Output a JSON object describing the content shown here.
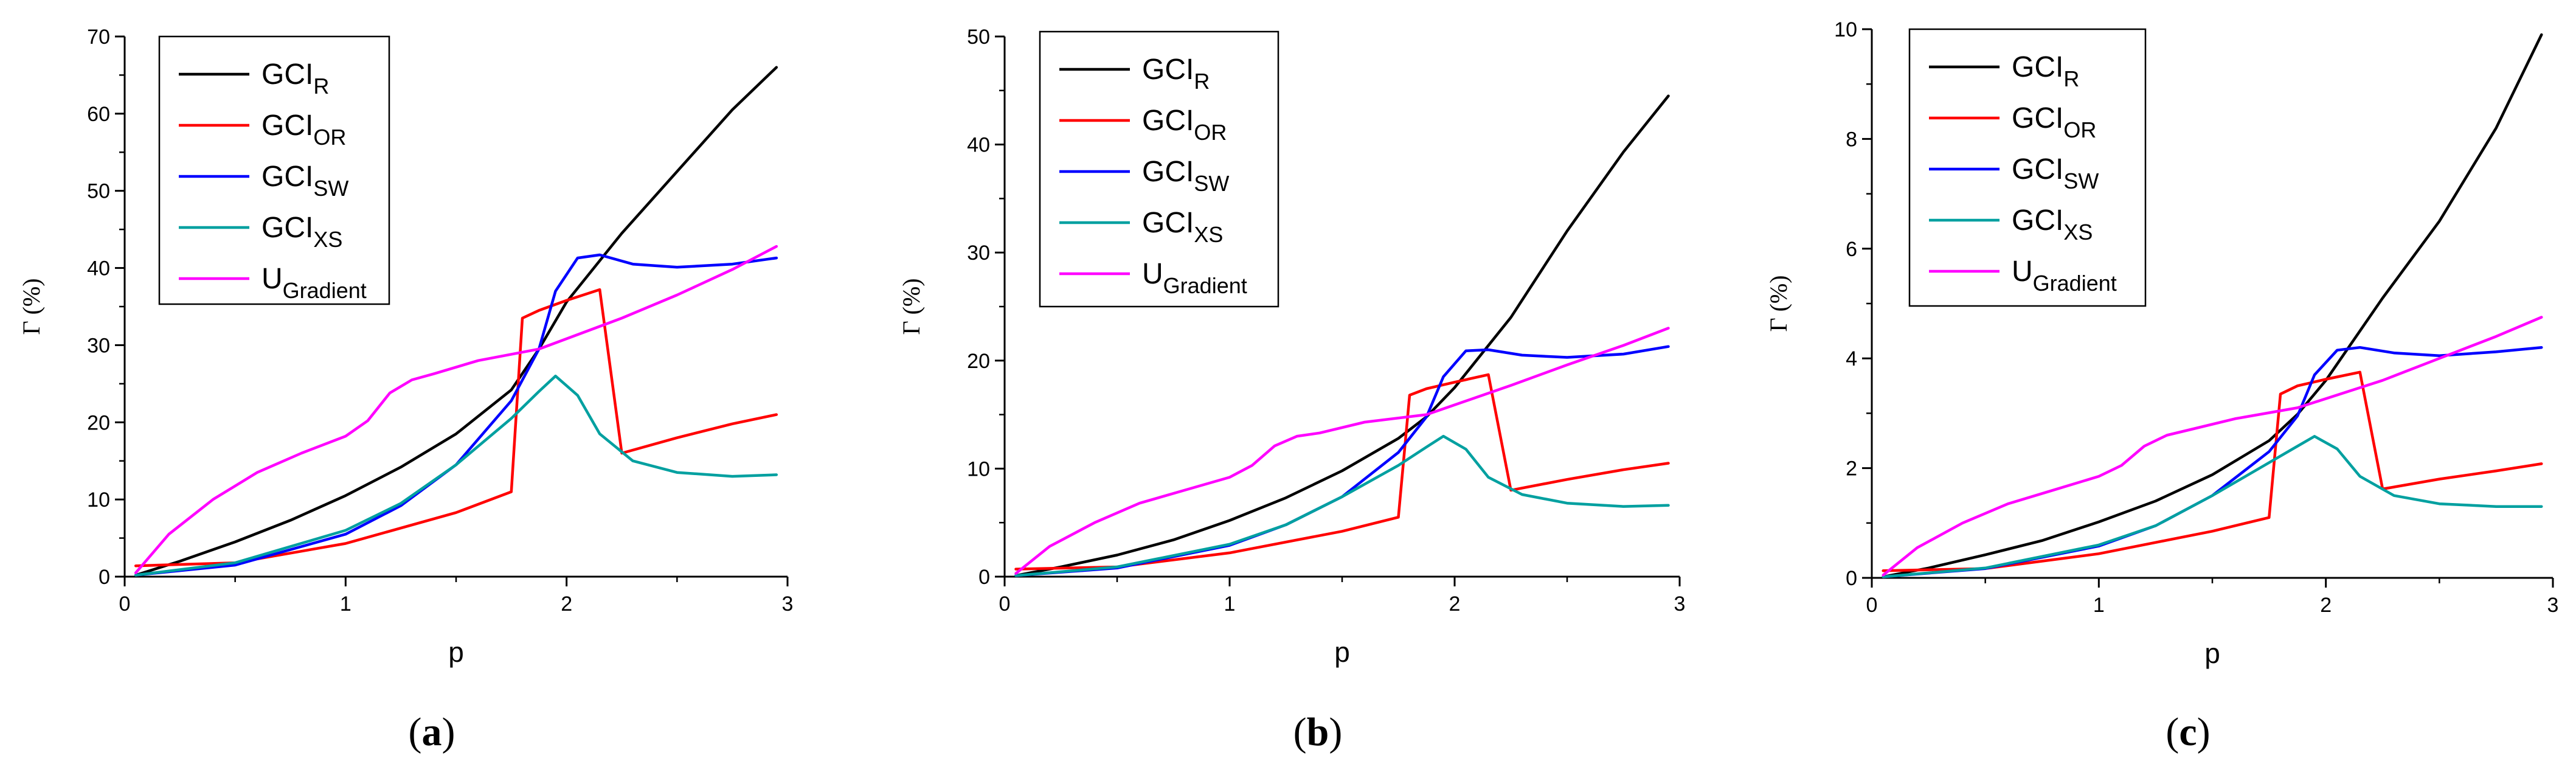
{
  "chart_data": [
    {
      "type": "line",
      "panel": "a",
      "caption": {
        "open": "(",
        "letter": "a",
        "close": ")"
      },
      "xlabel": "p",
      "ylabel": "Γ (%)",
      "xlim": [
        0,
        3
      ],
      "ylim": [
        0,
        70
      ],
      "xticks": [
        0,
        1,
        2,
        3
      ],
      "yticks": [
        0,
        10,
        20,
        30,
        40,
        50,
        60,
        70
      ],
      "series": [
        {
          "name": "GCI",
          "sub": "R",
          "color": "#000000",
          "x": [
            0.05,
            0.25,
            0.5,
            0.75,
            1.0,
            1.25,
            1.5,
            1.75,
            1.875,
            2.0,
            2.25,
            2.5,
            2.75,
            2.95
          ],
          "y": [
            0.2,
            2.0,
            4.5,
            7.3,
            10.5,
            14.2,
            18.5,
            24.2,
            29.5,
            35.6,
            44.5,
            52.5,
            60.5,
            66.0
          ]
        },
        {
          "name": "GCI",
          "sub": "OR",
          "color": "#ff0000",
          "x": [
            0.05,
            0.5,
            1.0,
            1.5,
            1.75,
            1.8,
            1.875,
            2.0,
            2.15,
            2.25,
            2.5,
            2.75,
            2.95
          ],
          "y": [
            1.4,
            1.8,
            4.3,
            8.3,
            11.0,
            33.5,
            34.5,
            35.8,
            37.2,
            16.0,
            18.0,
            19.8,
            21.0
          ],
          "points": "1.4@0.05"
        },
        {
          "name": "GCI",
          "sub": "SW",
          "color": "#0000ff",
          "x": [
            0.05,
            0.5,
            1.0,
            1.25,
            1.5,
            1.75,
            1.875,
            1.95,
            2.05,
            2.15,
            2.3,
            2.5,
            2.75,
            2.95
          ],
          "y": [
            0.2,
            1.5,
            5.5,
            9.2,
            14.5,
            22.8,
            29.5,
            37.0,
            41.3,
            41.7,
            40.5,
            40.1,
            40.5,
            41.3
          ]
        },
        {
          "name": "GCI",
          "sub": "XS",
          "color": "#00a0a0",
          "x": [
            0.05,
            0.5,
            1.0,
            1.25,
            1.5,
            1.75,
            1.875,
            1.95,
            2.05,
            2.15,
            2.3,
            2.5,
            2.75,
            2.95
          ],
          "y": [
            0.2,
            1.8,
            6.0,
            9.5,
            14.5,
            20.5,
            24.0,
            26.0,
            23.5,
            18.5,
            15.0,
            13.5,
            13.0,
            13.2
          ]
        },
        {
          "name": "U",
          "sub": "Gradient",
          "color": "#ff00ff",
          "x": [
            0.05,
            0.2,
            0.4,
            0.6,
            0.8,
            1.0,
            1.1,
            1.2,
            1.3,
            1.4,
            1.6,
            1.875,
            2.25,
            2.5,
            2.75,
            2.95
          ],
          "y": [
            0.5,
            5.5,
            10.0,
            13.5,
            16.0,
            18.2,
            20.2,
            23.8,
            25.5,
            26.3,
            28.0,
            29.5,
            33.5,
            36.5,
            39.8,
            42.8
          ]
        }
      ]
    },
    {
      "type": "line",
      "panel": "b",
      "caption": {
        "open": "(",
        "letter": "b",
        "close": ")"
      },
      "xlabel": "p",
      "ylabel": "Γ (%)",
      "xlim": [
        0,
        3
      ],
      "ylim": [
        0,
        50
      ],
      "xticks": [
        0,
        1,
        2,
        3
      ],
      "yticks": [
        0,
        10,
        20,
        30,
        40,
        50
      ],
      "series": [
        {
          "name": "GCI",
          "sub": "R",
          "color": "#000000",
          "x": [
            0.05,
            0.25,
            0.5,
            0.75,
            1.0,
            1.25,
            1.5,
            1.75,
            1.875,
            2.0,
            2.25,
            2.5,
            2.75,
            2.95
          ],
          "y": [
            0.1,
            0.9,
            2.0,
            3.4,
            5.2,
            7.3,
            9.8,
            12.8,
            14.8,
            17.5,
            24.0,
            32.0,
            39.3,
            44.5
          ]
        },
        {
          "name": "GCI",
          "sub": "OR",
          "color": "#ff0000",
          "x": [
            0.05,
            0.5,
            1.0,
            1.5,
            1.75,
            1.8,
            1.875,
            2.0,
            2.15,
            2.25,
            2.5,
            2.75,
            2.95
          ],
          "y": [
            0.7,
            0.9,
            2.2,
            4.2,
            5.5,
            16.8,
            17.4,
            18.0,
            18.7,
            8.0,
            9.0,
            9.9,
            10.5
          ]
        },
        {
          "name": "GCI",
          "sub": "SW",
          "color": "#0000ff",
          "x": [
            0.05,
            0.5,
            1.0,
            1.25,
            1.5,
            1.75,
            1.875,
            1.95,
            2.05,
            2.15,
            2.3,
            2.5,
            2.75,
            2.95
          ],
          "y": [
            0.1,
            0.8,
            2.9,
            4.8,
            7.4,
            11.5,
            14.8,
            18.5,
            20.9,
            21.0,
            20.5,
            20.3,
            20.6,
            21.3
          ]
        },
        {
          "name": "GCI",
          "sub": "XS",
          "color": "#00a0a0",
          "x": [
            0.05,
            0.5,
            1.0,
            1.25,
            1.5,
            1.75,
            1.875,
            1.95,
            2.05,
            2.15,
            2.3,
            2.5,
            2.75,
            2.95
          ],
          "y": [
            0.1,
            0.9,
            3.0,
            4.8,
            7.4,
            10.3,
            12.0,
            13.0,
            11.8,
            9.2,
            7.6,
            6.8,
            6.5,
            6.6
          ]
        },
        {
          "name": "U",
          "sub": "Gradient",
          "color": "#ff00ff",
          "x": [
            0.05,
            0.2,
            0.4,
            0.6,
            0.8,
            1.0,
            1.1,
            1.2,
            1.3,
            1.4,
            1.6,
            1.875,
            2.25,
            2.5,
            2.75,
            2.95
          ],
          "y": [
            0.3,
            2.8,
            5.0,
            6.8,
            8.0,
            9.2,
            10.3,
            12.1,
            13.0,
            13.3,
            14.3,
            15.0,
            17.7,
            19.6,
            21.4,
            23.0
          ]
        }
      ]
    },
    {
      "type": "line",
      "panel": "c",
      "caption": {
        "open": "(",
        "letter": "c",
        "close": ")"
      },
      "xlabel": "p",
      "ylabel": "Γ (%)",
      "xlim": [
        0,
        3
      ],
      "ylim": [
        0,
        10
      ],
      "xticks": [
        0,
        1,
        2,
        3
      ],
      "yticks": [
        0,
        2,
        4,
        6,
        8,
        10
      ],
      "series": [
        {
          "name": "GCI",
          "sub": "R",
          "color": "#000000",
          "x": [
            0.05,
            0.25,
            0.5,
            0.75,
            1.0,
            1.25,
            1.5,
            1.75,
            1.875,
            2.0,
            2.25,
            2.5,
            2.75,
            2.95
          ],
          "y": [
            0.02,
            0.18,
            0.42,
            0.68,
            1.02,
            1.4,
            1.88,
            2.5,
            2.98,
            3.6,
            5.1,
            6.5,
            8.2,
            9.9
          ]
        },
        {
          "name": "GCI",
          "sub": "OR",
          "color": "#ff0000",
          "x": [
            0.05,
            0.5,
            1.0,
            1.5,
            1.75,
            1.8,
            1.875,
            2.0,
            2.15,
            2.25,
            2.5,
            2.75,
            2.95
          ],
          "y": [
            0.13,
            0.17,
            0.44,
            0.85,
            1.1,
            3.35,
            3.5,
            3.62,
            3.75,
            1.62,
            1.8,
            1.95,
            2.08
          ]
        },
        {
          "name": "GCI",
          "sub": "SW",
          "color": "#0000ff",
          "x": [
            0.05,
            0.5,
            1.0,
            1.25,
            1.5,
            1.75,
            1.875,
            1.95,
            2.05,
            2.15,
            2.3,
            2.5,
            2.75,
            2.95
          ],
          "y": [
            0.02,
            0.17,
            0.58,
            0.95,
            1.5,
            2.3,
            2.95,
            3.7,
            4.15,
            4.2,
            4.1,
            4.05,
            4.12,
            4.2
          ]
        },
        {
          "name": "GCI",
          "sub": "XS",
          "color": "#00a0a0",
          "x": [
            0.05,
            0.5,
            1.0,
            1.25,
            1.5,
            1.75,
            1.875,
            1.95,
            2.05,
            2.15,
            2.3,
            2.5,
            2.75,
            2.95
          ],
          "y": [
            0.02,
            0.18,
            0.6,
            0.95,
            1.5,
            2.1,
            2.4,
            2.58,
            2.35,
            1.85,
            1.5,
            1.35,
            1.3,
            1.3
          ]
        },
        {
          "name": "U",
          "sub": "Gradient",
          "color": "#ff00ff",
          "x": [
            0.05,
            0.2,
            0.4,
            0.6,
            0.8,
            1.0,
            1.1,
            1.2,
            1.3,
            1.4,
            1.6,
            1.875,
            2.25,
            2.5,
            2.75,
            2.95
          ],
          "y": [
            0.05,
            0.55,
            1.0,
            1.35,
            1.6,
            1.85,
            2.05,
            2.4,
            2.6,
            2.7,
            2.9,
            3.1,
            3.6,
            4.0,
            4.4,
            4.75
          ]
        }
      ]
    }
  ]
}
